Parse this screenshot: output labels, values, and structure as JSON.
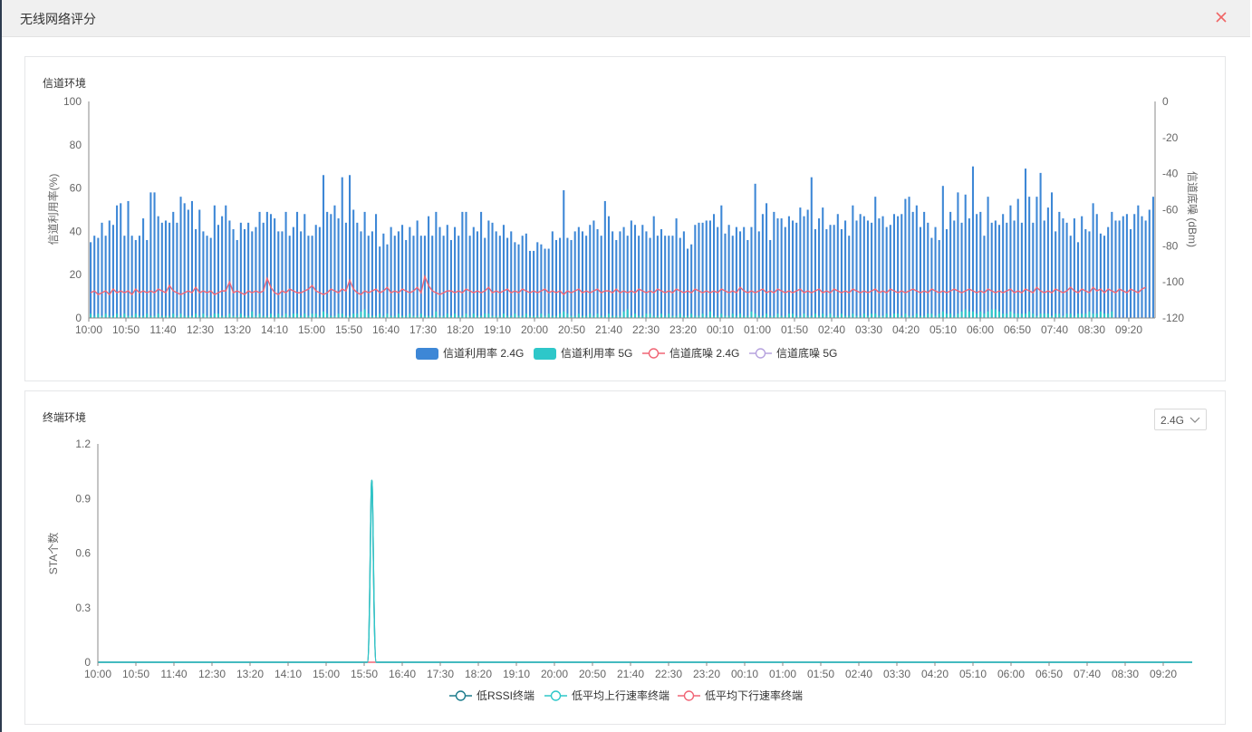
{
  "dialog": {
    "title": "无线网络评分",
    "close_icon": "close-icon",
    "accent_color": "#f06565"
  },
  "channel_panel": {
    "title": "信道环境",
    "chart_data": {
      "type": "bar",
      "title": "",
      "ylabel": "信道利用率(%)",
      "y2label": "信道底噪 (dBm)",
      "ylim": [
        0,
        100
      ],
      "y2lim": [
        -120,
        0
      ],
      "y_ticks": [
        "100",
        "80",
        "60",
        "40",
        "20",
        "0"
      ],
      "y2_ticks": [
        "0",
        "-20",
        "-40",
        "-60",
        "-80",
        "-100",
        "-120"
      ],
      "x_tick_labels": [
        "10:00",
        "10:50",
        "11:40",
        "12:30",
        "13:20",
        "14:10",
        "15:00",
        "15:50",
        "16:40",
        "17:30",
        "18:20",
        "19:10",
        "20:00",
        "20:50",
        "21:40",
        "22:30",
        "23:20",
        "00:10",
        "01:00",
        "01:50",
        "02:40",
        "03:30",
        "04:20",
        "05:10",
        "06:00",
        "06:50",
        "07:40",
        "08:30",
        "09:20"
      ],
      "legend_position": "bottom",
      "series": [
        {
          "name": "信道利用率 2.4G",
          "kind": "bar",
          "color": "#3d87d6",
          "values": [
            35,
            38,
            37,
            44,
            38,
            45,
            43,
            52,
            53,
            38,
            54,
            38,
            36,
            38,
            46,
            36,
            58,
            58,
            47,
            44,
            45,
            44,
            49,
            44,
            56,
            53,
            50,
            54,
            41,
            50,
            40,
            38,
            37,
            52,
            43,
            47,
            52,
            45,
            41,
            36,
            44,
            41,
            44,
            40,
            42,
            49,
            44,
            49,
            48,
            46,
            40,
            40,
            49,
            38,
            42,
            49,
            40,
            48,
            38,
            38,
            43,
            42,
            66,
            49,
            48,
            52,
            46,
            65,
            44,
            66,
            50,
            44,
            40,
            49,
            38,
            40,
            48,
            33,
            39,
            34,
            42,
            38,
            40,
            43,
            36,
            42,
            38,
            45,
            38,
            38,
            47,
            38,
            49,
            42,
            38,
            43,
            36,
            42,
            38,
            49,
            49,
            38,
            42,
            40,
            49,
            37,
            45,
            44,
            40,
            38,
            43,
            37,
            40,
            35,
            34,
            38,
            39,
            31,
            31,
            35,
            34,
            32,
            32,
            40,
            36,
            37,
            59,
            37,
            36,
            40,
            42,
            40,
            38,
            43,
            45,
            41,
            38,
            54,
            47,
            40,
            36,
            40,
            42,
            38,
            45,
            43,
            38,
            43,
            40,
            37,
            47,
            38,
            41,
            38,
            38,
            38,
            46,
            37,
            40,
            32,
            34,
            43,
            44,
            44,
            45,
            45,
            48,
            42,
            52,
            39,
            43,
            38,
            42,
            40,
            42,
            36,
            42,
            62,
            40,
            48,
            53,
            36,
            49,
            46,
            46,
            42,
            47,
            45,
            44,
            51,
            47,
            50,
            65,
            41,
            46,
            51,
            41,
            43,
            43,
            48,
            41,
            45,
            38,
            52,
            45,
            48,
            47,
            45,
            44,
            56,
            46,
            47,
            42,
            43,
            48,
            47,
            48,
            55,
            56,
            49,
            52,
            42,
            49,
            44,
            37,
            42,
            36,
            61,
            41,
            49,
            45,
            58,
            44,
            57,
            46,
            70,
            48,
            49,
            38,
            56,
            44,
            45,
            43,
            48,
            44,
            52,
            45,
            55,
            44,
            69,
            56,
            44,
            56,
            67,
            45,
            51,
            58,
            40,
            49,
            46,
            44,
            38,
            46,
            35,
            47,
            41,
            40,
            53,
            48,
            39,
            38,
            42,
            49,
            45,
            45,
            47,
            48,
            41,
            48,
            52,
            47,
            45,
            50,
            56
          ]
        },
        {
          "name": "信道利用率 5G",
          "kind": "bar",
          "color": "#2ec7c9",
          "values": [
            2,
            1,
            2,
            1,
            2,
            1,
            1,
            2,
            1,
            2,
            1,
            1,
            2,
            1,
            1,
            2,
            1,
            1,
            2,
            1,
            1,
            1,
            2,
            1,
            2,
            1,
            1,
            1,
            2,
            1,
            2,
            1,
            1,
            2,
            2,
            1,
            1,
            2,
            1,
            1,
            2,
            1,
            1,
            3,
            1,
            2,
            1,
            1,
            2,
            1,
            2,
            1,
            2,
            1,
            2,
            2,
            1,
            2,
            1,
            2,
            2,
            1,
            3,
            2,
            1,
            1,
            2,
            2,
            1,
            1,
            2,
            2,
            3,
            4,
            2,
            1,
            1,
            2,
            1,
            2,
            1,
            1,
            2,
            1,
            1,
            2,
            1,
            1,
            2,
            1,
            1,
            1,
            3,
            1,
            1,
            2,
            1,
            2,
            1,
            1,
            2,
            1,
            2,
            1,
            1,
            2,
            2,
            1,
            1,
            1,
            2,
            1,
            1,
            2,
            1,
            1,
            2,
            1,
            1,
            1,
            2,
            1,
            2,
            1,
            1,
            2,
            3,
            2,
            1,
            1,
            2,
            1,
            1,
            2,
            1,
            2,
            1,
            1,
            2,
            1,
            1,
            1,
            3,
            4,
            1,
            2,
            1,
            1,
            2,
            2,
            1,
            1,
            2,
            1,
            2,
            1,
            1,
            2,
            1,
            1,
            2,
            1,
            1,
            2,
            1,
            3,
            1,
            1,
            2,
            1,
            1,
            2,
            1,
            2,
            1,
            1,
            3,
            2,
            1,
            1,
            2,
            1,
            1,
            2,
            1,
            1,
            2,
            2,
            1,
            1,
            2,
            1,
            1,
            2,
            1,
            2,
            1,
            2,
            1,
            1,
            2,
            1,
            1,
            2,
            1,
            1,
            2,
            1,
            2,
            2,
            1,
            1,
            2,
            1,
            2,
            2,
            1,
            2,
            1,
            1,
            2,
            1,
            1,
            2,
            2,
            1,
            2,
            3,
            2,
            2,
            1,
            2,
            3,
            4,
            3,
            3,
            2,
            3,
            2,
            3,
            4,
            4,
            3,
            2,
            2,
            3,
            2,
            2,
            2,
            2,
            3,
            2,
            1,
            2,
            2,
            2,
            1,
            2,
            2,
            1,
            2,
            2,
            1,
            2,
            2,
            2,
            3,
            2,
            2,
            3,
            2,
            2,
            3
          ]
        },
        {
          "name": "信道底噪 2.4G",
          "kind": "line",
          "color": "#f06575",
          "values": [
            -106,
            -105,
            -107,
            -106,
            -105,
            -107,
            -104,
            -106,
            -105,
            -106,
            -105,
            -107,
            -104,
            -106,
            -105,
            -106,
            -105,
            -106,
            -104,
            -105,
            -106,
            -102,
            -105,
            -106,
            -107,
            -106,
            -105,
            -106,
            -103,
            -106,
            -105,
            -106,
            -105,
            -107,
            -106,
            -105,
            -105,
            -100,
            -106,
            -105,
            -106,
            -107,
            -105,
            -106,
            -105,
            -106,
            -105,
            -98,
            -103,
            -106,
            -107,
            -105,
            -106,
            -104,
            -105,
            -106,
            -106,
            -105,
            -104,
            -102,
            -105,
            -106,
            -107,
            -106,
            -104,
            -105,
            -106,
            -104,
            -105,
            -99,
            -104,
            -106,
            -107,
            -105,
            -106,
            -105,
            -104,
            -106,
            -105,
            -103,
            -106,
            -105,
            -106,
            -104,
            -105,
            -106,
            -105,
            -103,
            -106,
            -97,
            -102,
            -105,
            -106,
            -107,
            -106,
            -105,
            -105,
            -106,
            -105,
            -106,
            -104,
            -105,
            -106,
            -105,
            -106,
            -105,
            -103,
            -106,
            -105,
            -106,
            -105,
            -104,
            -106,
            -105,
            -106,
            -104,
            -105,
            -106,
            -105,
            -106,
            -105,
            -104,
            -106,
            -105,
            -106,
            -105,
            -107,
            -105,
            -106,
            -105,
            -104,
            -106,
            -105,
            -106,
            -105,
            -104,
            -106,
            -105,
            -105,
            -106,
            -104,
            -106,
            -105,
            -106,
            -105,
            -106,
            -104,
            -105,
            -106,
            -105,
            -106,
            -104,
            -105,
            -106,
            -105,
            -106,
            -104,
            -105,
            -106,
            -105,
            -106,
            -104,
            -105,
            -106,
            -105,
            -106,
            -105,
            -106,
            -104,
            -105,
            -106,
            -105,
            -106,
            -103,
            -105,
            -106,
            -105,
            -106,
            -105,
            -104,
            -106,
            -105,
            -106,
            -104,
            -105,
            -106,
            -105,
            -106,
            -105,
            -104,
            -106,
            -105,
            -106,
            -105,
            -104,
            -106,
            -105,
            -106,
            -104,
            -105,
            -106,
            -105,
            -106,
            -104,
            -105,
            -106,
            -105,
            -106,
            -105,
            -104,
            -106,
            -105,
            -106,
            -104,
            -105,
            -106,
            -105,
            -106,
            -105,
            -104,
            -105,
            -106,
            -105,
            -106,
            -104,
            -105,
            -106,
            -105,
            -106,
            -105,
            -104,
            -105,
            -106,
            -105,
            -104,
            -105,
            -106,
            -105,
            -106,
            -104,
            -105,
            -106,
            -105,
            -106,
            -105,
            -104,
            -106,
            -105,
            -106,
            -104,
            -105,
            -106,
            -103,
            -105,
            -106,
            -105,
            -106,
            -104,
            -105,
            -106,
            -105,
            -103,
            -105,
            -106,
            -104,
            -105,
            -106,
            -103,
            -105,
            -104,
            -106,
            -104,
            -105,
            -106,
            -104,
            -105,
            -106,
            -104,
            -105,
            -106,
            -104,
            -103
          ]
        },
        {
          "name": "信道底噪 5G",
          "kind": "line",
          "color": "#b6a2de",
          "values": []
        }
      ]
    }
  },
  "terminal_panel": {
    "title": "终端环境",
    "band_select": {
      "value": "2.4G",
      "icon": "chevron-down-icon"
    },
    "chart_data": {
      "type": "line",
      "title": "",
      "ylabel": "STA个数",
      "ylim": [
        0,
        1.2
      ],
      "y_ticks": [
        "1.2",
        "0.9",
        "0.6",
        "0.3",
        "0"
      ],
      "x_tick_labels": [
        "10:00",
        "10:50",
        "11:40",
        "12:30",
        "13:20",
        "14:10",
        "15:00",
        "15:50",
        "16:40",
        "17:30",
        "18:20",
        "19:10",
        "20:00",
        "20:50",
        "21:40",
        "22:30",
        "23:20",
        "00:10",
        "01:00",
        "01:50",
        "02:40",
        "03:30",
        "04:20",
        "05:10",
        "06:00",
        "06:50",
        "07:40",
        "08:30",
        "09:20"
      ],
      "legend_position": "bottom",
      "peak_at": "16:00",
      "series": [
        {
          "name": "低RSSI终端",
          "color": "#1b7b8c",
          "peak_value": 1
        },
        {
          "name": "低平均上行速率终端",
          "color": "#2ec7c9",
          "peak_value": 1
        },
        {
          "name": "低平均下行速率终端",
          "color": "#f06575",
          "peak_value": 0
        }
      ]
    }
  }
}
